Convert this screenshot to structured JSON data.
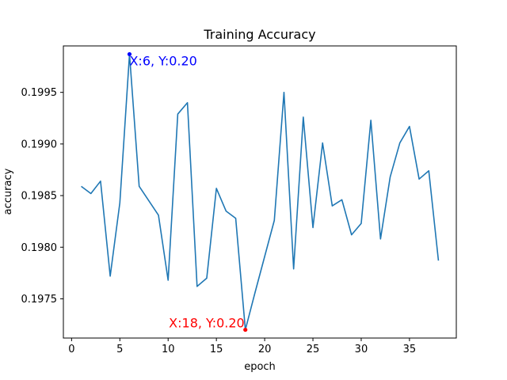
{
  "chart_data": {
    "type": "line",
    "title": "Training Accuracy",
    "xlabel": "epoch",
    "ylabel": "accuracy",
    "xlim": [
      -0.85,
      39.85
    ],
    "ylim": [
      0.19712,
      0.19995
    ],
    "grid": false,
    "xticks": [
      0,
      5,
      10,
      15,
      20,
      25,
      30,
      35
    ],
    "xtick_labels": [
      "0",
      "5",
      "10",
      "15",
      "20",
      "25",
      "30",
      "35"
    ],
    "yticks": [
      0.1975,
      0.198,
      0.1985,
      0.199,
      0.1995
    ],
    "ytick_labels": [
      "0.1975",
      "0.1980",
      "0.1985",
      "0.1990",
      "0.1995"
    ],
    "series": [
      {
        "color": "#1f77b4",
        "x": [
          1,
          2,
          3,
          4,
          5,
          6,
          7,
          8,
          9,
          10,
          11,
          12,
          13,
          14,
          15,
          16,
          17,
          18,
          19,
          20,
          21,
          22,
          23,
          24,
          25,
          26,
          27,
          28,
          29,
          30,
          31,
          32,
          33,
          34,
          35,
          36,
          37,
          38
        ],
        "y": [
          0.19859,
          0.19852,
          0.19864,
          0.19772,
          0.19843,
          0.19987,
          0.19859,
          0.19845,
          0.19831,
          0.19768,
          0.19929,
          0.1994,
          0.19762,
          0.1977,
          0.19857,
          0.19835,
          0.19828,
          0.1972,
          0.19756,
          0.19791,
          0.19826,
          0.1995,
          0.19779,
          0.19926,
          0.19819,
          0.19901,
          0.1984,
          0.19846,
          0.19812,
          0.19823,
          0.19923,
          0.19808,
          0.19868,
          0.19901,
          0.19917,
          0.19866,
          0.19874,
          0.19787
        ]
      }
    ],
    "annotations": [
      {
        "x": 6,
        "y": 0.19987,
        "text": "X:6, Y:0.20",
        "color": "#0000ff"
      },
      {
        "x": 18,
        "y": 0.1972,
        "text": "X:18, Y:0.20",
        "color": "#ff0000"
      }
    ]
  }
}
